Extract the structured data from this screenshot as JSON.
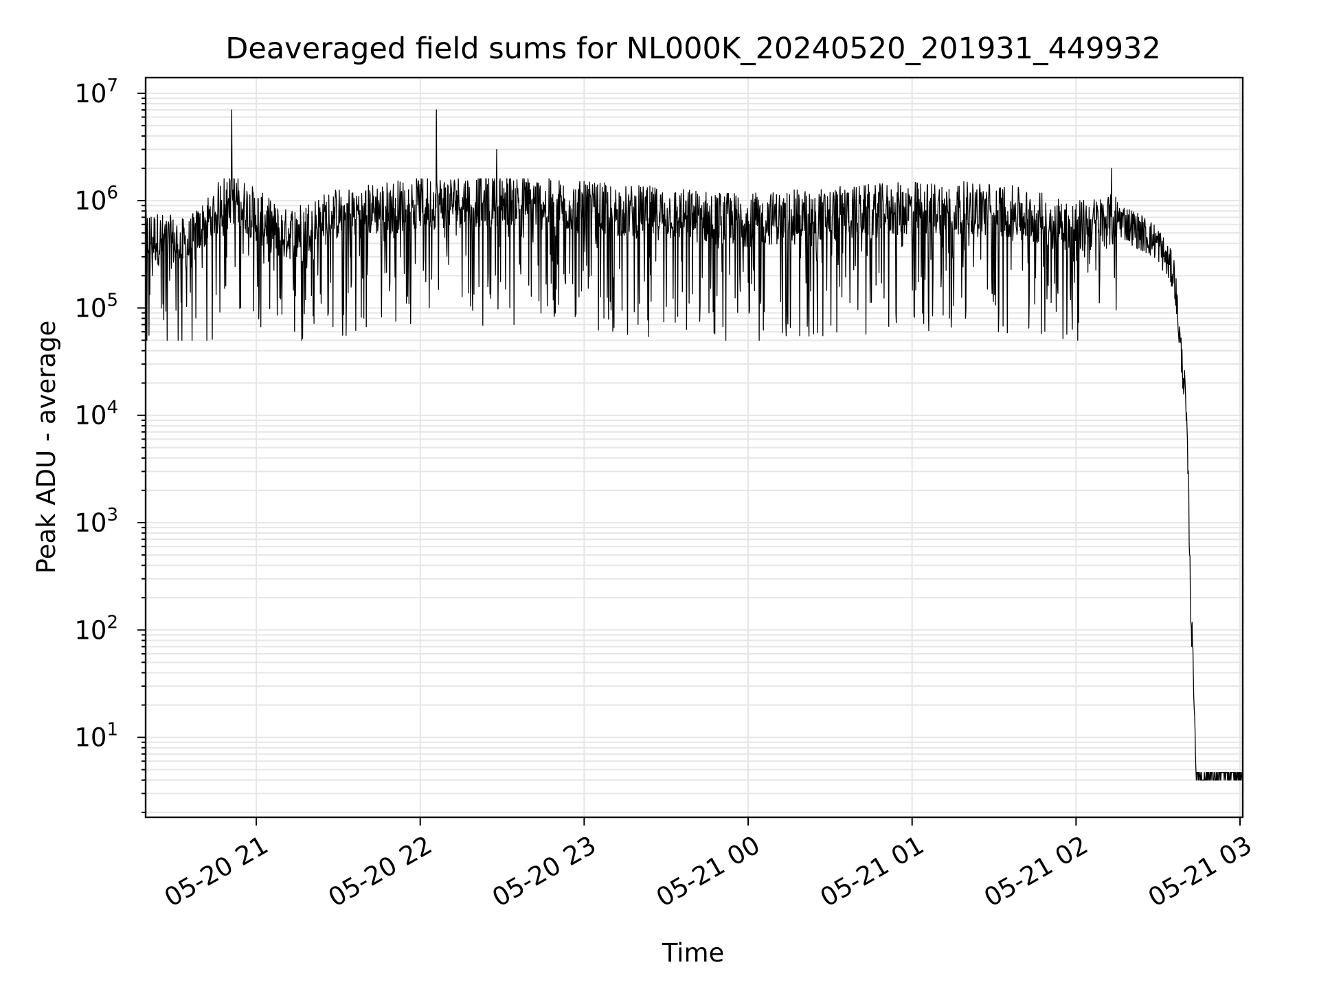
{
  "chart_data": {
    "type": "line",
    "title": "Deaveraged field sums for NL000K_20240520_201931_449932",
    "xlabel": "Time",
    "ylabel": "Peak ADU - average",
    "yscale": "log",
    "ylim": [
      1.8,
      14000000
    ],
    "xlim": [
      "2024-05-20 20:19:31",
      "2024-05-21 03:01:00"
    ],
    "grid": true,
    "x_ticks": [
      "05-20 21",
      "05-20 22",
      "05-20 23",
      "05-21 00",
      "05-21 01",
      "05-21 02",
      "05-21 03"
    ],
    "y_ticks": [
      {
        "base": "10",
        "exp": "1",
        "value": 10
      },
      {
        "base": "10",
        "exp": "2",
        "value": 100
      },
      {
        "base": "10",
        "exp": "3",
        "value": 1000
      },
      {
        "base": "10",
        "exp": "4",
        "value": 10000
      },
      {
        "base": "10",
        "exp": "5",
        "value": 100000
      },
      {
        "base": "10",
        "exp": "6",
        "value": 1000000
      },
      {
        "base": "10",
        "exp": "7",
        "value": 10000000
      }
    ],
    "series": [
      {
        "color": "#000000",
        "x": [
          "2024-05-20 20:19:31",
          "2024-05-20 20:35",
          "2024-05-20 20:50",
          "2024-05-20 21:10",
          "2024-05-20 21:30",
          "2024-05-20 22:00",
          "2024-05-20 22:30",
          "2024-05-20 23:00",
          "2024-05-20 23:30",
          "2024-05-21 00:00",
          "2024-05-21 00:30",
          "2024-05-21 01:00",
          "2024-05-21 01:30",
          "2024-05-21 02:00",
          "2024-05-21 02:15",
          "2024-05-21 02:30",
          "2024-05-21 02:36",
          "2024-05-21 02:38",
          "2024-05-21 02:40",
          "2024-05-21 02:41",
          "2024-05-21 02:42",
          "2024-05-21 02:43",
          "2024-05-21 02:44",
          "2024-05-21 03:01"
        ],
        "values": [
          500000,
          400000,
          1200000,
          500000,
          800000,
          1000000,
          1100000,
          900000,
          800000,
          700000,
          800000,
          900000,
          900000,
          600000,
          700000,
          400000,
          200000,
          50000,
          15000,
          3000,
          150,
          40,
          4,
          4
        ],
        "spikes": [
          {
            "x": "2024-05-20 20:51",
            "value": 7000000
          },
          {
            "x": "2024-05-20 22:06",
            "value": 7000000
          },
          {
            "x": "2024-05-20 22:28",
            "value": 3000000
          },
          {
            "x": "2024-05-21 02:13",
            "value": 2000000
          }
        ],
        "band_min": 50000,
        "band_max": 1600000
      }
    ]
  }
}
